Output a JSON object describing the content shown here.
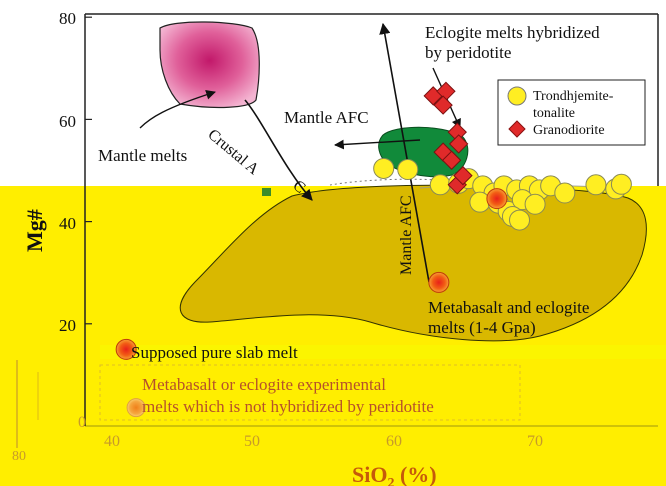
{
  "colors": {
    "yellow_band": "#ffee00",
    "band_bg": "#fbf500",
    "field_fill": "#d9b800",
    "field_outline": "#333300",
    "mantle_pink": "#d6337f",
    "green_field": "#118a3a",
    "diamond_red": "#e02a2a",
    "circle_yellow": "#ffee22",
    "point_orange": "#f06010",
    "axis_black": "#222222",
    "dark_red_text": "#8a3a12",
    "tick_text_yellow": "#d8a020"
  },
  "chart_data": {
    "type": "scatter",
    "title": "",
    "xlabel": "SiO2 (%)",
    "ylabel": "Mg#",
    "xlim": [
      40,
      80
    ],
    "ylim": [
      0,
      80
    ],
    "x_ticks": [
      "40",
      "50",
      "60",
      "70"
    ],
    "y_ticks": [
      "0",
      "20",
      "40",
      "60",
      "80"
    ],
    "series": [
      {
        "name": "Trondhjemite-tonalite",
        "marker": "circle",
        "points": [
          [
            63.2,
            47.2
          ],
          [
            64.5,
            47.5
          ],
          [
            65.2,
            48.4
          ],
          [
            66.2,
            47.0
          ],
          [
            67.0,
            45.6
          ],
          [
            67.7,
            47.0
          ],
          [
            68.6,
            46.2
          ],
          [
            69.5,
            47.0
          ],
          [
            70.2,
            46.2
          ],
          [
            71.0,
            47.0
          ],
          [
            72.0,
            45.6
          ],
          [
            74.2,
            47.2
          ],
          [
            75.6,
            46.4
          ],
          [
            76.0,
            47.3
          ],
          [
            66.0,
            43.8
          ],
          [
            67.3,
            43.6
          ],
          [
            68.0,
            42.0
          ],
          [
            69.0,
            44.3
          ],
          [
            68.3,
            41.0
          ],
          [
            68.8,
            40.3
          ],
          [
            69.9,
            43.4
          ],
          [
            60.9,
            50.2
          ],
          [
            59.2,
            50.4
          ]
        ]
      },
      {
        "name": "Granodiorite",
        "marker": "diamond",
        "points": [
          [
            62.7,
            64.6
          ],
          [
            63.6,
            65.5
          ],
          [
            63.4,
            62.8
          ],
          [
            64.4,
            57.5
          ],
          [
            64.5,
            55.2
          ],
          [
            63.4,
            53.6
          ],
          [
            64.0,
            52.0
          ],
          [
            64.4,
            47.2
          ],
          [
            64.8,
            49.0
          ]
        ]
      }
    ],
    "highlighted_points": [
      {
        "label": "Metabasalt and eclogite melts (1-4 Gpa)",
        "x": 63.1,
        "y": 28.1
      },
      {
        "label": "Suppo... pure slab melt",
        "x": 41.0,
        "y": 15.0
      },
      {
        "label": "Metabasalt or eclogite experimental melts which is not hybridized by peridotite",
        "x": 41.7,
        "y": 3.6
      },
      {
        "label": "",
        "x": 67.2,
        "y": 44.5
      }
    ],
    "annotations": [
      "Eclogite melts hybridized by peridotite",
      "Mantle AFC",
      "Mantle melts",
      "Crustal AFC",
      "Mantle AFC"
    ]
  },
  "text": {
    "legend_tt_line1": "Trondhjemite-",
    "legend_tt_line2": "tonalite",
    "legend_gd": "Granodiorite",
    "eclogite_line1": "Eclogite melts hybridized",
    "eclogite_line2": "by peridotite",
    "mantle_afc_horizontal": "Mantle AFC",
    "mantle_melts": "Mantle melts",
    "crustal_afc_part1": "Crustal A",
    "crustal_afc_part2": "C",
    "mantle_afc_vertical": "Mantle AFC",
    "metabasalt_line1": "Metabasalt and eclogite",
    "metabasalt_line2": "melts (1-4 Gpa)",
    "slab_melt": "Suppoѕed pure slab melt",
    "experimental_line1": "Metabasalt or eclogite experimental",
    "experimental_line2": "melts which is not hybridized by peridotite",
    "x_label_main": "SiO",
    "x_label_sub": "2",
    "x_label_tail": " (%)",
    "y_label": "Mg#",
    "y_tick_0": "0",
    "y_tick_20": "20",
    "y_tick_40": "40",
    "y_tick_60": "60",
    "y_tick_80": "80",
    "x_tick_40": "40",
    "x_tick_50": "50",
    "x_tick_60": "60",
    "x_tick_70": "70",
    "left_edge_fragment": "80"
  }
}
